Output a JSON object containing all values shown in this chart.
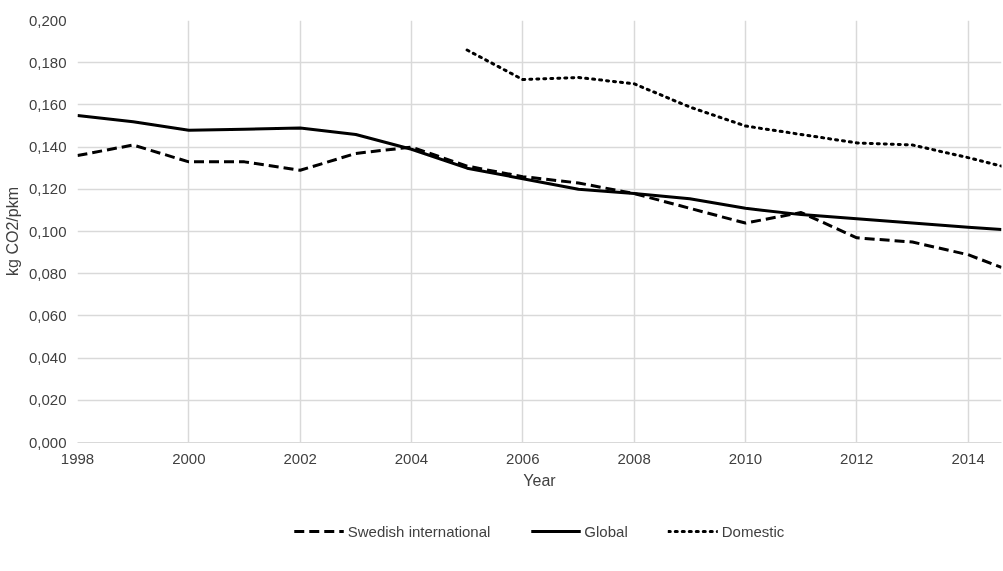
{
  "chart_data": {
    "type": "line",
    "xlabel": "Year",
    "ylabel": "kg CO2/pkm",
    "xlim": [
      1998,
      2014.6
    ],
    "ylim": [
      0,
      0.2
    ],
    "xticks": [
      1998,
      2000,
      2002,
      2004,
      2006,
      2008,
      2010,
      2012,
      2014
    ],
    "yticks": [
      {
        "value": 0,
        "label": "0,000"
      },
      {
        "value": 0.02,
        "label": "0,020"
      },
      {
        "value": 0.04,
        "label": "0,040"
      },
      {
        "value": 0.06,
        "label": "0,060"
      },
      {
        "value": 0.08,
        "label": "0,080"
      },
      {
        "value": 0.1,
        "label": "0,100"
      },
      {
        "value": 0.12,
        "label": "0,120"
      },
      {
        "value": 0.14,
        "label": "0,140"
      },
      {
        "value": 0.16,
        "label": "0,160"
      },
      {
        "value": 0.18,
        "label": "0,180"
      },
      {
        "value": 0.2,
        "label": "0,200"
      }
    ],
    "grid": true,
    "legend": "bottom",
    "series": [
      {
        "name": "Swedish international",
        "color": "#000000",
        "line_style": "dashed",
        "x": [
          1998,
          1999,
          2000,
          2001,
          2002,
          2003,
          2004,
          2005,
          2006,
          2007,
          2008,
          2009,
          2010,
          2011,
          2012,
          2013,
          2014,
          2014.6
        ],
        "values": [
          0.136,
          0.141,
          0.133,
          0.133,
          0.129,
          0.137,
          0.14,
          0.131,
          0.126,
          0.123,
          0.118,
          0.111,
          0.104,
          0.109,
          0.097,
          0.095,
          0.089,
          0.083
        ]
      },
      {
        "name": "Global",
        "color": "#000000",
        "line_style": "solid",
        "x": [
          1998,
          1999,
          2000,
          2001,
          2002,
          2003,
          2004,
          2005,
          2006,
          2007,
          2008,
          2009,
          2010,
          2011,
          2012,
          2013,
          2014,
          2014.6
        ],
        "values": [
          0.155,
          0.152,
          0.148,
          0.1485,
          0.149,
          0.146,
          0.139,
          0.13,
          0.125,
          0.12,
          0.118,
          0.1155,
          0.111,
          0.108,
          0.106,
          0.104,
          0.102,
          0.101
        ]
      },
      {
        "name": "Domestic",
        "color": "#000000",
        "line_style": "dotted",
        "x": [
          2005,
          2006,
          2007,
          2008,
          2009,
          2010,
          2011,
          2012,
          2013,
          2014,
          2014.6
        ],
        "values": [
          0.186,
          0.172,
          0.173,
          0.17,
          0.159,
          0.15,
          0.146,
          0.142,
          0.141,
          0.135,
          0.131
        ]
      }
    ]
  }
}
